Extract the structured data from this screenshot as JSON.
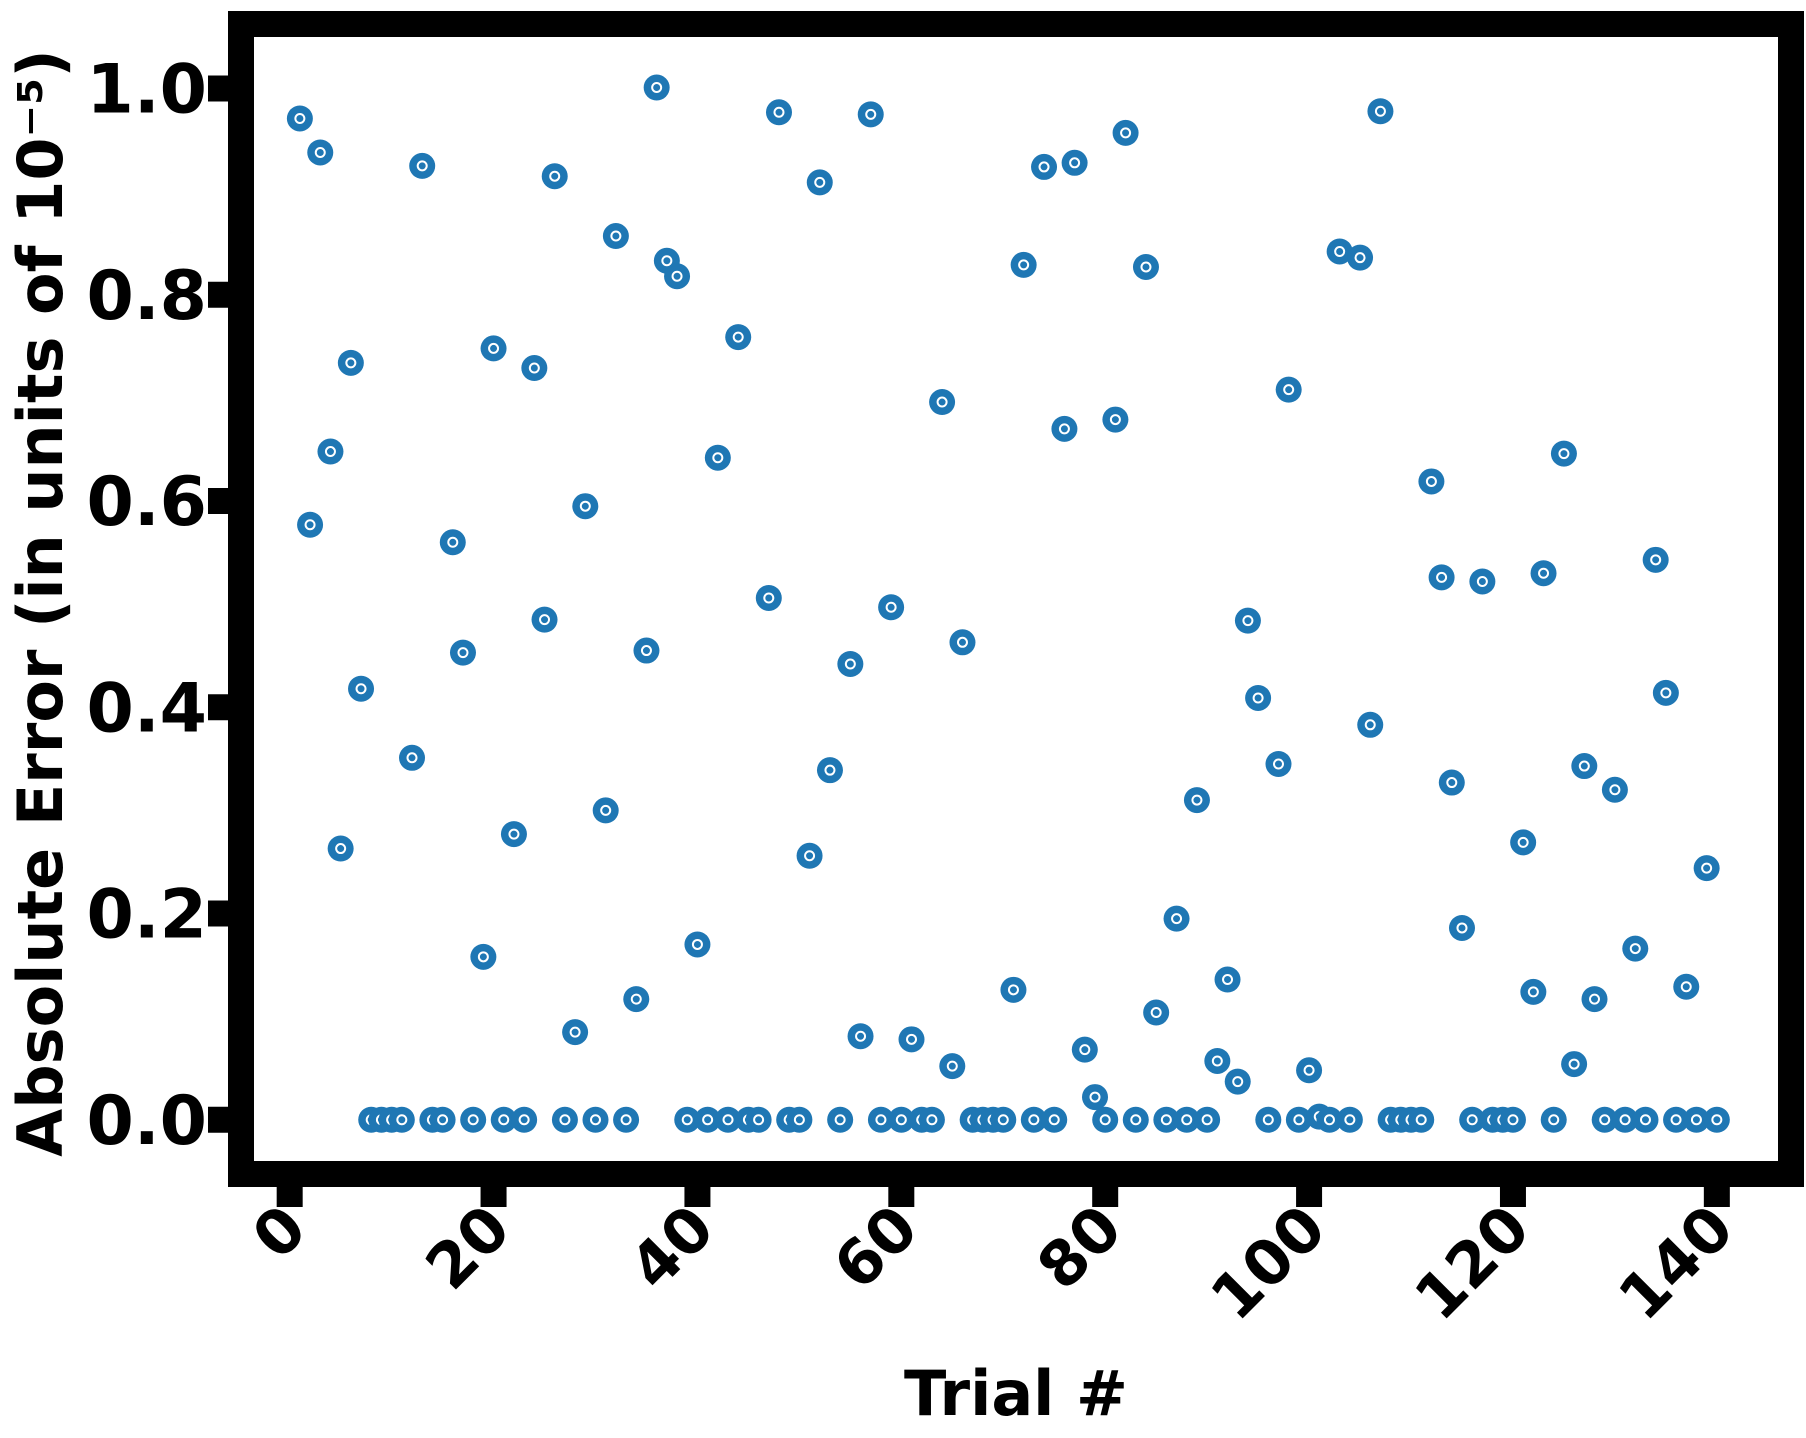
{
  "chart_data": {
    "type": "scatter",
    "title": "",
    "xlabel": "Trial #",
    "ylabel": "Absolute Error (in units of 10⁻⁵)",
    "xlim": [
      -3.5,
      146
    ],
    "ylim": [
      -0.04,
      1.05
    ],
    "xticks": [
      0,
      20,
      40,
      60,
      80,
      100,
      120,
      140
    ],
    "xtick_labels": [
      "0",
      "20",
      "40",
      "60",
      "80",
      "100",
      "120",
      "140"
    ],
    "yticks": [
      0.0,
      0.2,
      0.4,
      0.6,
      0.8,
      1.0
    ],
    "ytick_labels": [
      "0.0",
      "0.2",
      "0.4",
      "0.6",
      "0.8",
      "1.0"
    ],
    "grid": false,
    "legend": false,
    "marker_color": "#1f77b4",
    "x": [
      1,
      2,
      3,
      4,
      5,
      6,
      7,
      8,
      9,
      10,
      11,
      12,
      13,
      14,
      15,
      16,
      17,
      18,
      19,
      20,
      21,
      22,
      23,
      24,
      25,
      26,
      27,
      28,
      29,
      30,
      31,
      32,
      33,
      34,
      35,
      36,
      37,
      38,
      39,
      40,
      41,
      42,
      43,
      44,
      45,
      46,
      47,
      48,
      49,
      50,
      51,
      52,
      53,
      54,
      55,
      56,
      57,
      58,
      59,
      60,
      61,
      62,
      63,
      64,
      65,
      66,
      67,
      68,
      69,
      70,
      71,
      72,
      73,
      74,
      75,
      76,
      77,
      78,
      79,
      80,
      81,
      82,
      83,
      84,
      85,
      86,
      87,
      88,
      89,
      90,
      91,
      92,
      93,
      94,
      95,
      96,
      97,
      98,
      99,
      100,
      101,
      102,
      103,
      104,
      105,
      106,
      107,
      108,
      109,
      110,
      111,
      112,
      113,
      114,
      115,
      116,
      117,
      118,
      119,
      120,
      121,
      122,
      123,
      124,
      125,
      126,
      127,
      128,
      129,
      130,
      131,
      132,
      133,
      134,
      135,
      136,
      137,
      138,
      139,
      140
    ],
    "y": [
      0.971,
      0.577,
      0.938,
      0.648,
      0.263,
      0.734,
      0.418,
      0.0,
      0.0,
      0.0,
      0.0,
      0.351,
      0.925,
      0.0,
      0.0,
      0.56,
      0.453,
      0.0,
      0.158,
      0.748,
      0.0,
      0.277,
      0.0,
      0.729,
      0.485,
      0.915,
      0.0,
      0.085,
      0.595,
      0.0,
      0.3,
      0.857,
      0.0,
      0.117,
      0.455,
      1.001,
      0.833,
      0.818,
      0.0,
      0.17,
      0.0,
      0.642,
      0.0,
      0.759,
      0.0,
      0.0,
      0.506,
      0.977,
      0.0,
      0.0,
      0.256,
      0.909,
      0.339,
      0.0,
      0.442,
      0.081,
      0.975,
      0.0,
      0.497,
      0.0,
      0.078,
      0.0,
      0.0,
      0.696,
      0.052,
      0.463,
      0.0,
      0.0,
      0.0,
      0.0,
      0.126,
      0.829,
      0.0,
      0.924,
      0.0,
      0.67,
      0.928,
      0.068,
      0.022,
      0.0,
      0.679,
      0.957,
      0.0,
      0.827,
      0.104,
      0.0,
      0.195,
      0.0,
      0.31,
      0.0,
      0.057,
      0.136,
      0.037,
      0.484,
      0.409,
      0.0,
      0.345,
      0.708,
      0.0,
      0.048,
      0.003,
      0.0,
      0.842,
      0.0,
      0.836,
      0.383,
      0.978,
      0.0,
      0.0,
      0.0,
      0.0,
      0.619,
      0.526,
      0.327,
      0.186,
      0.0,
      0.522,
      0.0,
      0.0,
      0.0,
      0.269,
      0.124,
      0.53,
      0.0,
      0.646,
      0.054,
      0.343,
      0.117,
      0.0,
      0.32,
      0.0,
      0.166,
      0.0,
      0.543,
      0.414,
      0.0,
      0.129,
      0.0,
      0.244,
      0.0
    ]
  }
}
